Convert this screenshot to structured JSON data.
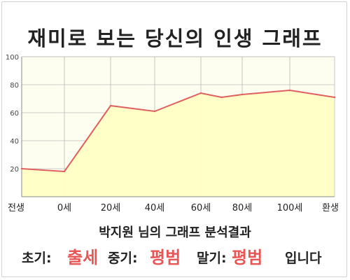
{
  "title": "재미로 보는 당신의 인생 그래프",
  "chart_data": {
    "type": "area",
    "title": "재미로 보는 당신의 인생 그래프",
    "x": [
      -1,
      0,
      20,
      40,
      60,
      70,
      80,
      100,
      120
    ],
    "categories": [
      "전생",
      "0세",
      "20세",
      "40세",
      "60세",
      "80세",
      "100세",
      "환생"
    ],
    "category_positions": [
      -1,
      0,
      20,
      40,
      60,
      80,
      100,
      120
    ],
    "values": [
      20,
      18,
      65,
      61,
      74,
      71,
      73,
      76,
      71
    ],
    "ylim": [
      0,
      100
    ],
    "yticks": [
      "100",
      "80",
      "60",
      "40",
      "20"
    ],
    "ytick_values": [
      100,
      80,
      60,
      40,
      20
    ],
    "xlabel": "",
    "ylabel": "",
    "grid": "vertical-and-horizontal",
    "colors": {
      "line": "#e06060",
      "fill": "#ffffc4",
      "plot_bg": "#fefef0",
      "grid": "#a0a0a0",
      "axis_text": "#444444"
    }
  },
  "summary": {
    "line": "박지원 님의 그래프 분석결과"
  },
  "result": {
    "early_label": "초기:",
    "early_value": "출세",
    "middle_label": "중기:",
    "middle_value": "평범",
    "late_label": "말기:",
    "late_value": "평범",
    "closing": "입니다"
  },
  "accent_color": "#e85555"
}
